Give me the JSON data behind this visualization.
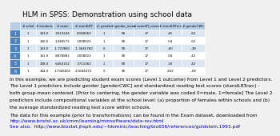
{
  "title": "HLM in SPSS: Demonstration using school data",
  "title_fontsize": 6.5,
  "background_color": "#f0f0f0",
  "table_header": [
    "# schol",
    "# students",
    "# exam",
    "# standLRT",
    "d: gender",
    "# gender_mean",
    "# examRT_mean",
    "# standLRTmn",
    "# genderCWC"
  ],
  "table_rows": [
    [
      "1",
      "143.0",
      ".2613244",
      ".8180662",
      "1",
      "58",
      "17",
      ".45",
      ".62"
    ],
    [
      "1",
      "140.0",
      ".1346571",
      ".2008022",
      "1",
      "58",
      "17",
      ".04",
      ".62"
    ],
    [
      "1",
      "143.0",
      "-1.723881",
      "-1.3645760",
      "0",
      "58",
      "17",
      "-.60",
      "-.38"
    ],
    [
      "1",
      "141.0",
      ".8878882",
      ".2008022",
      "1",
      "58",
      "17",
      ".04",
      ".42"
    ],
    [
      "1",
      "108.0",
      ".6463152",
      ".3711062",
      "1",
      "58",
      "17",
      ".20",
      ".42"
    ],
    [
      "1",
      "164.0",
      "1.7346001",
      "2.1694372",
      "0",
      "58",
      "17",
      "2.02",
      "-.58"
    ]
  ],
  "header_bg": "#b8cce4",
  "row_bg_odd": "#dce6f1",
  "row_bg_even": "#ffffff",
  "row_number_bg": "#4f81bd",
  "row_number_color": "#ffffff",
  "body_text": [
    "In this example, we are predicting student exam scores (Level 1 outcome) from Level 1 and Level 2 predictors.",
    "The Level 1 predictors include gender [genderCWC] and standardized reading test scores (standLRTcwc) -",
    "both group-mean centered. [Prior to centering, the gender variable was coded 0=male, 1=female] The Level 2",
    "predictors include compositional variables at the school level: (a) proportion of females within schools and (b)",
    "the average standardized reading test score within schools."
  ],
  "data_text": "The data for this example (prior to transformations) can be found in the Exam dataset, downloaded from",
  "data_link": "http://www.bristol.ac.uk/cmm/learning/mmsoftware/data-rev.html",
  "see_also_text": "See also:  http://www.biostat.jhsph.edu/~fdominic/teaching/bio656/references/goldstein.1993.pdf",
  "text_fontsize": 4.2,
  "link_color": "#0000cc"
}
